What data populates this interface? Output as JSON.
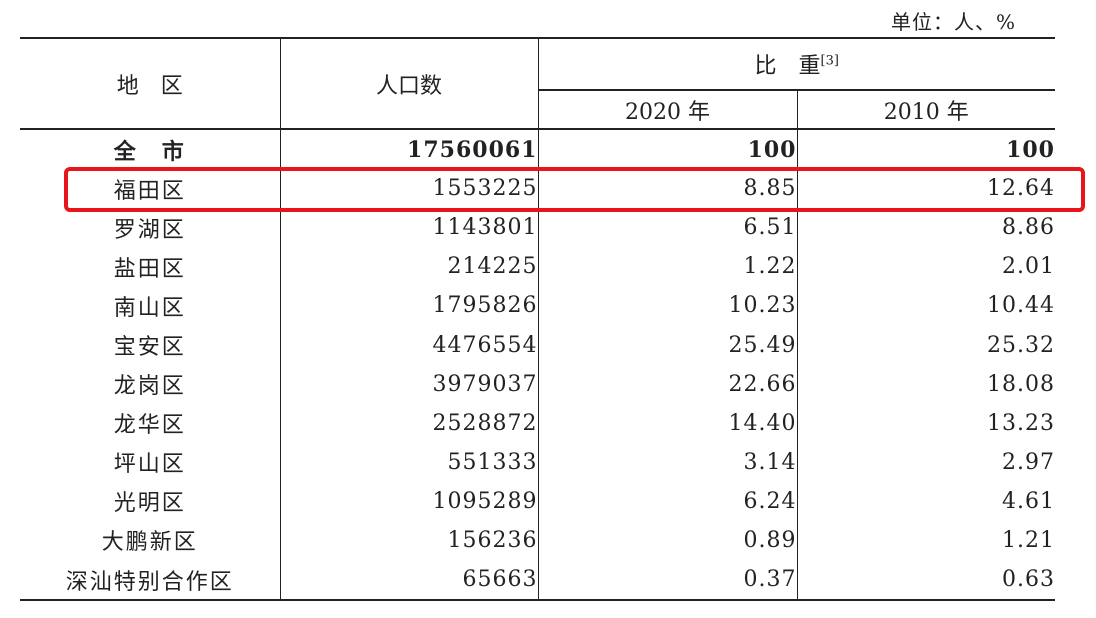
{
  "unit_label": "单位：人、%",
  "header": {
    "region": "地　区",
    "population": "人口数",
    "share": "比　重",
    "share_note": "[3]",
    "year_2020": "2020 年",
    "year_2010": "2010 年"
  },
  "rows": [
    {
      "region": "全　市",
      "population": "17560061",
      "share_2020": "100",
      "share_2010": "100"
    },
    {
      "region": "福田区",
      "population": "1553225",
      "share_2020": "8.85",
      "share_2010": "12.64"
    },
    {
      "region": "罗湖区",
      "population": "1143801",
      "share_2020": "6.51",
      "share_2010": "8.86"
    },
    {
      "region": "盐田区",
      "population": "214225",
      "share_2020": "1.22",
      "share_2010": "2.01"
    },
    {
      "region": "南山区",
      "population": "1795826",
      "share_2020": "10.23",
      "share_2010": "10.44"
    },
    {
      "region": "宝安区",
      "population": "4476554",
      "share_2020": "25.49",
      "share_2010": "25.32"
    },
    {
      "region": "龙岗区",
      "population": "3979037",
      "share_2020": "22.66",
      "share_2010": "18.08"
    },
    {
      "region": "龙华区",
      "population": "2528872",
      "share_2020": "14.40",
      "share_2010": "13.23"
    },
    {
      "region": "坪山区",
      "population": "551333",
      "share_2020": "3.14",
      "share_2010": "2.97"
    },
    {
      "region": "光明区",
      "population": "1095289",
      "share_2020": "6.24",
      "share_2010": "4.61"
    },
    {
      "region": "大鹏新区",
      "population": "156236",
      "share_2020": "0.89",
      "share_2010": "1.21"
    },
    {
      "region": "深汕特别合作区",
      "population": "65663",
      "share_2020": "0.37",
      "share_2010": "0.63"
    }
  ],
  "highlight_color": "#e8151b"
}
